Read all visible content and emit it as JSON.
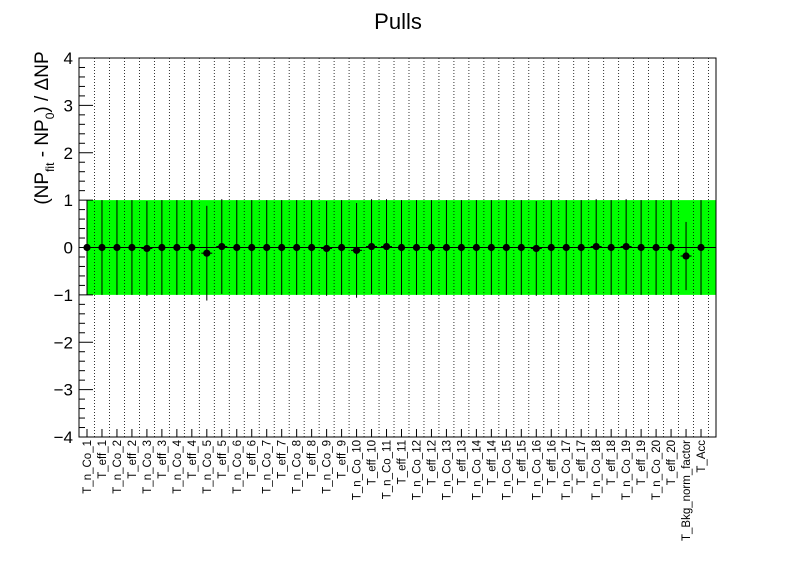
{
  "chart_data": {
    "type": "scatter",
    "title": "Pulls",
    "ylabel": {
      "main": "(NP",
      "sub1": "fit",
      "mid": " - NP",
      "sub2": "0",
      "tail": ") / ΔNP"
    },
    "ylim": [
      -4,
      4
    ],
    "yticks": [
      -4,
      -3,
      -2,
      -1,
      0,
      1,
      2,
      3,
      4
    ],
    "band": [
      -1,
      1
    ],
    "band_color": "#00ff00",
    "grid": "vertical dotted",
    "categories": [
      "T_n_Co_1",
      "T_eff_1",
      "T_n_Co_2",
      "T_eff_2",
      "T_n_Co_3",
      "T_eff_3",
      "T_n_Co_4",
      "T_eff_4",
      "T_n_Co_5",
      "T_eff_5",
      "T_n_Co_6",
      "T_eff_6",
      "T_n_Co_7",
      "T_eff_7",
      "T_n_Co_8",
      "T_eff_8",
      "T_n_Co_9",
      "T_eff_9",
      "T_n_Co_10",
      "T_eff_10",
      "T_n_Co_11",
      "T_eff_11",
      "T_n_Co_12",
      "T_eff_12",
      "T_n_Co_13",
      "T_eff_13",
      "T_n_Co_14",
      "T_eff_14",
      "T_n_Co_15",
      "T_eff_15",
      "T_n_Co_16",
      "T_eff_16",
      "T_n_Co_17",
      "T_eff_17",
      "T_n_Co_18",
      "T_eff_18",
      "T_n_Co_19",
      "T_eff_19",
      "T_n_Co_20",
      "T_eff_20",
      "T_Bkg_norm_factor",
      "T_Acc"
    ],
    "values": [
      0.0,
      0.0,
      0.0,
      0.0,
      -0.02,
      0.0,
      0.0,
      0.0,
      -0.12,
      0.02,
      0.0,
      0.0,
      0.0,
      0.0,
      0.0,
      0.0,
      -0.02,
      0.0,
      -0.06,
      0.02,
      0.02,
      0.0,
      0.0,
      0.0,
      0.0,
      0.0,
      0.0,
      0.0,
      0.0,
      0.0,
      -0.02,
      0.0,
      0.0,
      0.0,
      0.02,
      0.0,
      0.02,
      0.0,
      0.0,
      0.0,
      -0.18,
      0.0
    ],
    "errors": [
      1,
      1,
      1,
      1,
      1,
      1,
      1,
      1,
      1,
      1,
      1,
      1,
      1,
      1,
      1,
      1,
      1,
      1,
      1,
      1,
      1,
      1,
      1,
      1,
      1,
      1,
      1,
      1,
      1,
      1,
      1,
      1,
      1,
      1,
      1,
      1,
      1,
      1,
      1,
      1,
      0.72,
      1
    ]
  }
}
